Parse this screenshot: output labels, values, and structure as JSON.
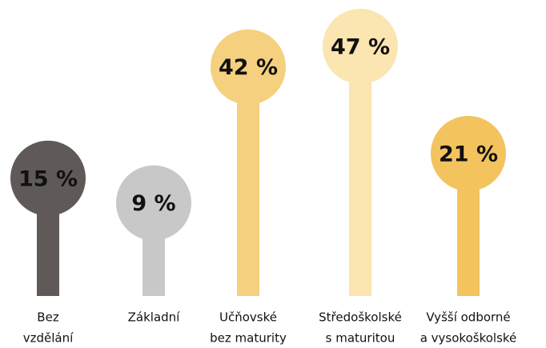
{
  "chart_data": {
    "type": "lollipop",
    "categories": [
      [
        "Bez",
        "vzdělání"
      ],
      [
        "Základní"
      ],
      [
        "Učňovské",
        "bez maturity"
      ],
      [
        "Středoškolské",
        "s maturitou"
      ],
      [
        "Vyšší odborné",
        "a vysokoškolské"
      ]
    ],
    "values": [
      15,
      9,
      42,
      47,
      21
    ],
    "value_labels": [
      "15 %",
      "9 %",
      "42 %",
      "47 %",
      "21 %"
    ],
    "colors": [
      "#5f5a57",
      "#c8c8c8",
      "#f5d07e",
      "#fbe5b0",
      "#f3c35e"
    ]
  }
}
